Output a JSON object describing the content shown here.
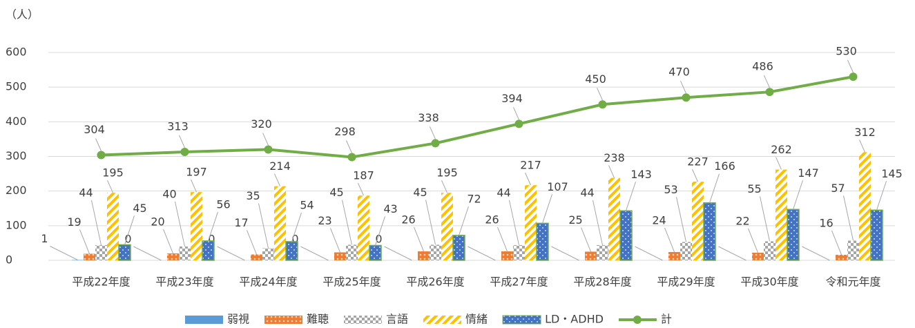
{
  "chart_data": {
    "type": "bar",
    "unit_label": "（人）",
    "categories": [
      "平成22年度",
      "平成23年度",
      "平成24年度",
      "平成25年度",
      "平成26年度",
      "平成27年度",
      "平成28年度",
      "平成29年度",
      "平成30年度",
      "令和元年度"
    ],
    "series": [
      {
        "name": "弱視",
        "color": "#5b9bd5",
        "values": [
          1,
          0,
          0,
          0,
          0,
          0,
          0,
          0,
          0,
          0
        ]
      },
      {
        "name": "難聴",
        "color": "#ed7d31",
        "values": [
          19,
          20,
          17,
          23,
          26,
          26,
          25,
          24,
          22,
          16
        ]
      },
      {
        "name": "言語",
        "color": "#a5a5a5",
        "values": [
          44,
          40,
          35,
          45,
          45,
          44,
          44,
          53,
          55,
          57
        ]
      },
      {
        "name": "情緒",
        "color": "#ffc000",
        "values": [
          195,
          197,
          214,
          187,
          195,
          217,
          238,
          227,
          262,
          312
        ]
      },
      {
        "name": "LD・ADHD",
        "color": "#4472c4",
        "values": [
          45,
          56,
          54,
          43,
          72,
          107,
          143,
          166,
          147,
          145
        ]
      },
      {
        "name": "計",
        "type": "line",
        "color": "#70ad47",
        "values": [
          304,
          313,
          320,
          298,
          338,
          394,
          450,
          470,
          486,
          530
        ]
      }
    ],
    "ylim": [
      0,
      600
    ],
    "yticks": [
      0,
      100,
      200,
      300,
      400,
      500,
      600
    ],
    "grid": true,
    "legend": "bottom"
  }
}
